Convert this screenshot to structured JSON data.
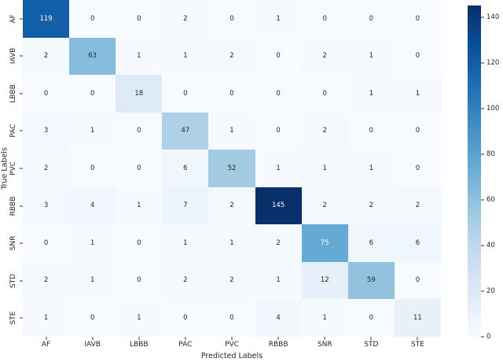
{
  "chart_data": {
    "type": "heatmap",
    "title": "",
    "xlabel": "Predicted Labels",
    "ylabel": "True Labels",
    "x_categories": [
      "AF",
      "IAVB",
      "LBBB",
      "PAC",
      "PVC",
      "RBBB",
      "SNR",
      "STD",
      "STE"
    ],
    "y_categories": [
      "AF",
      "IAVB",
      "LBBB",
      "PAC",
      "PVC",
      "RBBB",
      "SNR",
      "STD",
      "STE"
    ],
    "matrix": [
      [
        119,
        0,
        0,
        2,
        0,
        1,
        0,
        0,
        0
      ],
      [
        2,
        63,
        1,
        1,
        2,
        0,
        2,
        1,
        0
      ],
      [
        0,
        0,
        18,
        0,
        0,
        0,
        0,
        1,
        1
      ],
      [
        3,
        1,
        0,
        47,
        1,
        0,
        2,
        0,
        0
      ],
      [
        2,
        0,
        0,
        6,
        52,
        1,
        1,
        1,
        0
      ],
      [
        3,
        4,
        1,
        7,
        2,
        145,
        2,
        2,
        2
      ],
      [
        0,
        1,
        0,
        1,
        1,
        2,
        75,
        6,
        6
      ],
      [
        2,
        1,
        0,
        2,
        2,
        1,
        12,
        59,
        0
      ],
      [
        1,
        0,
        1,
        0,
        0,
        4,
        1,
        0,
        11
      ]
    ],
    "vmin": 0,
    "vmax": 145,
    "colorbar_ticks": [
      0,
      20,
      40,
      60,
      80,
      100,
      120,
      140
    ],
    "legend_position": "right",
    "grid": false,
    "colors": {
      "colormap_name": "Blues",
      "cmap_stops": [
        "#f7fbff",
        "#deebf7",
        "#c6dbef",
        "#9ecae1",
        "#6baed6",
        "#4292c6",
        "#2171b5",
        "#08519c",
        "#08306b"
      ],
      "annot_dark": "#262626",
      "annot_light": "#ffffff",
      "tick_color": "#333333"
    }
  }
}
